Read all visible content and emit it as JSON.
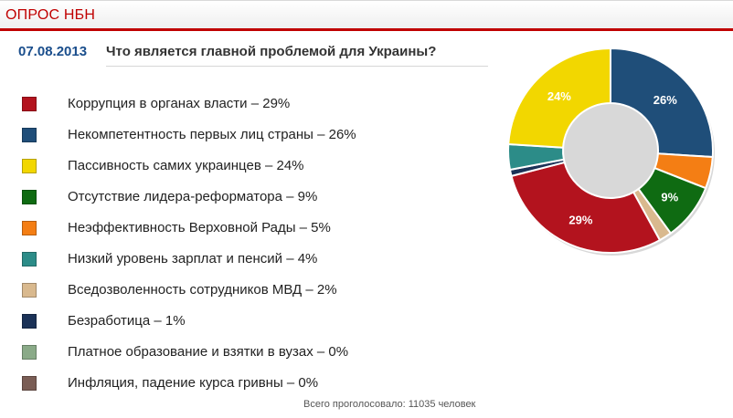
{
  "header": {
    "title": "ОПРОС НБН"
  },
  "poll": {
    "date": "07.08.2013",
    "question": "Что является главной проблемой для Украины?",
    "footer": "Всего проголосовало: 11035 человек"
  },
  "colors": {
    "accent_red": "#c00000",
    "date_blue": "#1a4e8c"
  },
  "legend": [
    {
      "label": "Коррупция в органах власти – 29%",
      "color": "#b3131e"
    },
    {
      "label": "Некомпетентность первых лиц страны – 26%",
      "color": "#1f4e79"
    },
    {
      "label": "Пассивность самих украинцев – 24%",
      "color": "#f2d700"
    },
    {
      "label": "Отсутствие лидера-реформатора – 9%",
      "color": "#0f6b12"
    },
    {
      "label": "Неэффективность Верховной Рады – 5%",
      "color": "#f47e14"
    },
    {
      "label": "Низкий уровень зарплат и пенсий – 4%",
      "color": "#2c8c88"
    },
    {
      "label": "Вседозволенность сотрудников МВД – 2%",
      "color": "#d9b98e"
    },
    {
      "label": "Безработица – 1%",
      "color": "#1b3257"
    },
    {
      "label": "Платное образование и взятки в вузах – 0%",
      "color": "#8aaa88"
    },
    {
      "label": "Инфляция, падение курса гривны – 0%",
      "color": "#7a5d55"
    }
  ],
  "chart_data": {
    "type": "pie",
    "subtype": "donut",
    "title": "Что является главной проблемой для Украины?",
    "slices": [
      {
        "name": "Некомпетентность первых лиц страны",
        "value": 26,
        "color": "#1f4e79",
        "label": "26%"
      },
      {
        "name": "Неэффективность Верховной Рады",
        "value": 5,
        "color": "#f47e14",
        "label": ""
      },
      {
        "name": "Отсутствие лидера-реформатора",
        "value": 9,
        "color": "#0f6b12",
        "label": "9%"
      },
      {
        "name": "Вседозволенность сотрудников МВД",
        "value": 2,
        "color": "#d9b98e",
        "label": ""
      },
      {
        "name": "Коррупция в органах власти",
        "value": 29,
        "color": "#b3131e",
        "label": "29%"
      },
      {
        "name": "Безработица",
        "value": 1,
        "color": "#1b3257",
        "label": ""
      },
      {
        "name": "Низкий уровень зарплат и пенсий",
        "value": 4,
        "color": "#2c8c88",
        "label": ""
      },
      {
        "name": "Пассивность самих украинцев",
        "value": 24,
        "color": "#f2d700",
        "label": "24%"
      },
      {
        "name": "Платное образование и взятки в вузах",
        "value": 0,
        "color": "#8aaa88",
        "label": ""
      },
      {
        "name": "Инфляция, падение курса гривны",
        "value": 0,
        "color": "#7a5d55",
        "label": ""
      }
    ]
  }
}
